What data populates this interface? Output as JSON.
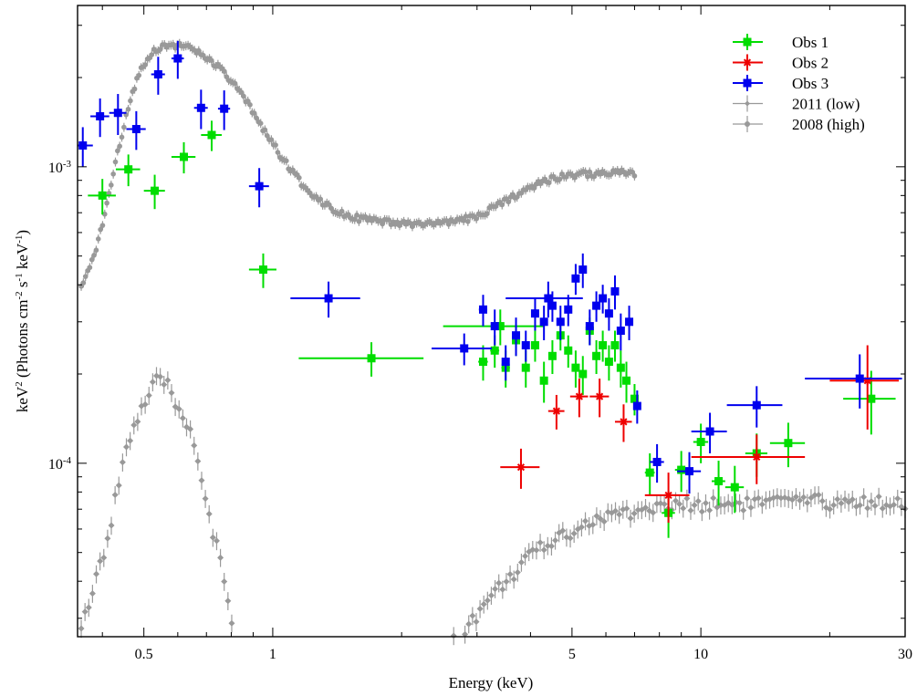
{
  "chart_data": {
    "type": "scatter",
    "title": "",
    "xlabel": "Energy (keV)",
    "ylabel": {
      "prefix": "keV",
      "prefix_sup": "2",
      "open": " (Photons cm",
      "sup1": "-2",
      "mid1": " s",
      "sup2": "-1",
      "mid2": " keV",
      "sup3": "-1",
      "close": ")"
    },
    "x_scale": "log",
    "y_scale": "log",
    "xlim": [
      0.35,
      30
    ],
    "ylim": [
      2.6e-05,
      0.0035
    ],
    "x_ticks": [
      {
        "value": 0.5,
        "label": "0.5"
      },
      {
        "value": 1,
        "label": "1"
      },
      {
        "value": 5,
        "label": "5"
      },
      {
        "value": 10,
        "label": "10"
      },
      {
        "value": 30,
        "label": "30"
      }
    ],
    "y_ticks": [
      {
        "value": 0.001,
        "base": "10",
        "exp": "-3"
      },
      {
        "value": 0.0001,
        "base": "10",
        "exp": "-4"
      }
    ],
    "legend_position": "top-right",
    "series": [
      {
        "name": "Obs 1",
        "color": "#00dd00",
        "marker": "square",
        "points": [
          [
            0.4,
            0.0008,
            0.03,
            0.00011
          ],
          [
            0.46,
            0.00098,
            0.03,
            0.00012
          ],
          [
            0.53,
            0.00083,
            0.03,
            0.00011
          ],
          [
            0.62,
            0.00108,
            0.04,
            0.00013
          ],
          [
            0.72,
            0.00128,
            0.04,
            0.00015
          ],
          [
            0.95,
            0.00045,
            0.07,
            6e-05
          ],
          [
            1.7,
            0.000226,
            0.55,
            3e-05
          ],
          [
            3.4,
            0.00029,
            0.9,
            4e-05
          ],
          [
            3.1,
            0.00022,
            0.08,
            3e-05
          ],
          [
            3.3,
            0.00024,
            0.08,
            3e-05
          ],
          [
            3.5,
            0.00021,
            0.08,
            3e-05
          ],
          [
            3.7,
            0.00026,
            0.08,
            3e-05
          ],
          [
            3.9,
            0.00021,
            0.08,
            3e-05
          ],
          [
            4.1,
            0.00025,
            0.08,
            3e-05
          ],
          [
            4.3,
            0.00019,
            0.08,
            3e-05
          ],
          [
            4.5,
            0.00023,
            0.08,
            3e-05
          ],
          [
            4.7,
            0.00027,
            0.08,
            3e-05
          ],
          [
            4.9,
            0.00024,
            0.08,
            3e-05
          ],
          [
            5.1,
            0.00021,
            0.08,
            3e-05
          ],
          [
            5.3,
            0.0002,
            0.08,
            3e-05
          ],
          [
            5.5,
            0.00028,
            0.08,
            3e-05
          ],
          [
            5.7,
            0.00023,
            0.08,
            3e-05
          ],
          [
            5.9,
            0.00025,
            0.08,
            3e-05
          ],
          [
            6.1,
            0.00022,
            0.08,
            3e-05
          ],
          [
            6.3,
            0.00025,
            0.08,
            3e-05
          ],
          [
            6.5,
            0.00021,
            0.08,
            3e-05
          ],
          [
            6.7,
            0.00019,
            0.08,
            3e-05
          ],
          [
            7.0,
            0.000165,
            0.1,
            2e-05
          ],
          [
            7.6,
            9.3e-05,
            0.2,
            1.5e-05
          ],
          [
            8.4,
            6.8e-05,
            0.3,
            1.2e-05
          ],
          [
            9.0,
            9.5e-05,
            0.3,
            1.5e-05
          ],
          [
            10.0,
            0.000118,
            0.4,
            1.8e-05
          ],
          [
            11.0,
            8.7e-05,
            0.4,
            1.5e-05
          ],
          [
            12.0,
            8.3e-05,
            0.6,
            1.5e-05
          ],
          [
            13.5,
            0.000108,
            0.8,
            1.8e-05
          ],
          [
            16.0,
            0.000117,
            1.5,
            2e-05
          ],
          [
            25.0,
            0.000165,
            3.5,
            4e-05
          ]
        ]
      },
      {
        "name": "Obs 2",
        "color": "#ee0000",
        "marker": "star",
        "points": [
          [
            3.8,
            9.7e-05,
            0.4,
            1.5e-05
          ],
          [
            4.6,
            0.00015,
            0.2,
            2e-05
          ],
          [
            5.2,
            0.000168,
            0.25,
            2.5e-05
          ],
          [
            5.8,
            0.000168,
            0.3,
            2.5e-05
          ],
          [
            6.6,
            0.000138,
            0.3,
            2e-05
          ],
          [
            8.4,
            7.8e-05,
            1.0,
            1.5e-05
          ],
          [
            13.5,
            0.000105,
            4.0,
            2e-05
          ],
          [
            24.5,
            0.00019,
            4.5,
            6e-05
          ]
        ]
      },
      {
        "name": "Obs 3",
        "color": "#0000ee",
        "marker": "square",
        "points": [
          [
            0.36,
            0.00118,
            0.02,
            0.00018
          ],
          [
            0.395,
            0.00148,
            0.02,
            0.00022
          ],
          [
            0.435,
            0.00152,
            0.02,
            0.00024
          ],
          [
            0.48,
            0.00134,
            0.025,
            0.0002
          ],
          [
            0.54,
            0.00205,
            0.02,
            0.0003
          ],
          [
            0.6,
            0.00232,
            0.02,
            0.00034
          ],
          [
            0.68,
            0.00158,
            0.025,
            0.00024
          ],
          [
            0.77,
            0.00157,
            0.025,
            0.00024
          ],
          [
            0.93,
            0.00086,
            0.05,
            0.00013
          ],
          [
            1.35,
            0.00036,
            0.25,
            5e-05
          ],
          [
            2.8,
            0.000244,
            0.45,
            3e-05
          ],
          [
            4.4,
            0.00036,
            0.9,
            5e-05
          ],
          [
            3.1,
            0.00033,
            0.07,
            4e-05
          ],
          [
            3.3,
            0.00029,
            0.07,
            4e-05
          ],
          [
            3.5,
            0.00022,
            0.07,
            3e-05
          ],
          [
            3.7,
            0.00027,
            0.07,
            4e-05
          ],
          [
            3.9,
            0.00025,
            0.07,
            3e-05
          ],
          [
            4.1,
            0.00032,
            0.07,
            4e-05
          ],
          [
            4.3,
            0.0003,
            0.07,
            4e-05
          ],
          [
            4.5,
            0.00034,
            0.07,
            4e-05
          ],
          [
            4.7,
            0.0003,
            0.07,
            4e-05
          ],
          [
            4.9,
            0.00033,
            0.07,
            4e-05
          ],
          [
            5.1,
            0.00042,
            0.07,
            5e-05
          ],
          [
            5.3,
            0.00045,
            0.07,
            6e-05
          ],
          [
            5.5,
            0.00029,
            0.07,
            4e-05
          ],
          [
            5.7,
            0.00034,
            0.07,
            4e-05
          ],
          [
            5.9,
            0.00036,
            0.07,
            4e-05
          ],
          [
            6.1,
            0.00032,
            0.07,
            4e-05
          ],
          [
            6.3,
            0.00038,
            0.07,
            5e-05
          ],
          [
            6.5,
            0.00028,
            0.07,
            4e-05
          ],
          [
            6.8,
            0.0003,
            0.08,
            4e-05
          ],
          [
            7.1,
            0.000156,
            0.12,
            2e-05
          ],
          [
            7.9,
            0.000101,
            0.3,
            1.5e-05
          ],
          [
            9.4,
            9.4e-05,
            0.6,
            1.5e-05
          ],
          [
            10.5,
            0.000128,
            1.0,
            2e-05
          ],
          [
            13.5,
            0.000157,
            2.0,
            2.5e-05
          ],
          [
            23.5,
            0.000193,
            6.0,
            4e-05
          ]
        ]
      },
      {
        "name": "2011 (low)",
        "color": "#999999",
        "marker": "diamond",
        "model": "low",
        "x_range": [
          0.35,
          30
        ]
      },
      {
        "name": "2008 (high)",
        "color": "#999999",
        "marker": "dot",
        "model": "high",
        "x_range": [
          0.35,
          7
        ]
      }
    ]
  }
}
